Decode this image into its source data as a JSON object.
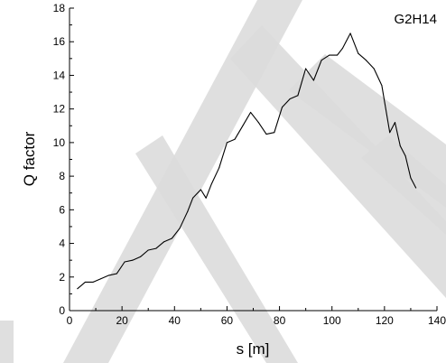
{
  "chart_data": {
    "type": "line",
    "title": "",
    "xlabel": "s [m]",
    "ylabel": "Q factor",
    "xlim": [
      0,
      140
    ],
    "ylim": [
      0,
      18
    ],
    "x_ticks": [
      0,
      20,
      40,
      60,
      80,
      100,
      120,
      140
    ],
    "y_ticks": [
      0,
      2,
      4,
      6,
      8,
      10,
      12,
      14,
      16,
      18
    ],
    "annotation": "G2H14",
    "grid": false,
    "line_color": "#000000",
    "watermark_color": "#dcdcdc",
    "series": [
      {
        "x": [
          3,
          6,
          9,
          12,
          15,
          18,
          21,
          24,
          27,
          30,
          33,
          36,
          39,
          42,
          45,
          47,
          50,
          52,
          54,
          57,
          60,
          63,
          66,
          69,
          72,
          75,
          78,
          81,
          84,
          87,
          90,
          93,
          96,
          99,
          102,
          104,
          107,
          110,
          113,
          116,
          119,
          122,
          124,
          126,
          128,
          130,
          132
        ],
        "y": [
          1.3,
          1.7,
          1.7,
          1.9,
          2.1,
          2.2,
          2.9,
          3.0,
          3.2,
          3.6,
          3.7,
          4.1,
          4.3,
          4.9,
          5.9,
          6.7,
          7.2,
          6.7,
          7.5,
          8.5,
          10.0,
          10.2,
          11.0,
          11.8,
          11.2,
          10.5,
          10.6,
          12.1,
          12.6,
          12.8,
          14.4,
          13.7,
          14.9,
          15.2,
          15.2,
          15.6,
          16.5,
          15.3,
          14.9,
          14.4,
          13.4,
          10.6,
          11.2,
          9.8,
          9.2,
          7.9,
          7.3
        ]
      }
    ]
  }
}
